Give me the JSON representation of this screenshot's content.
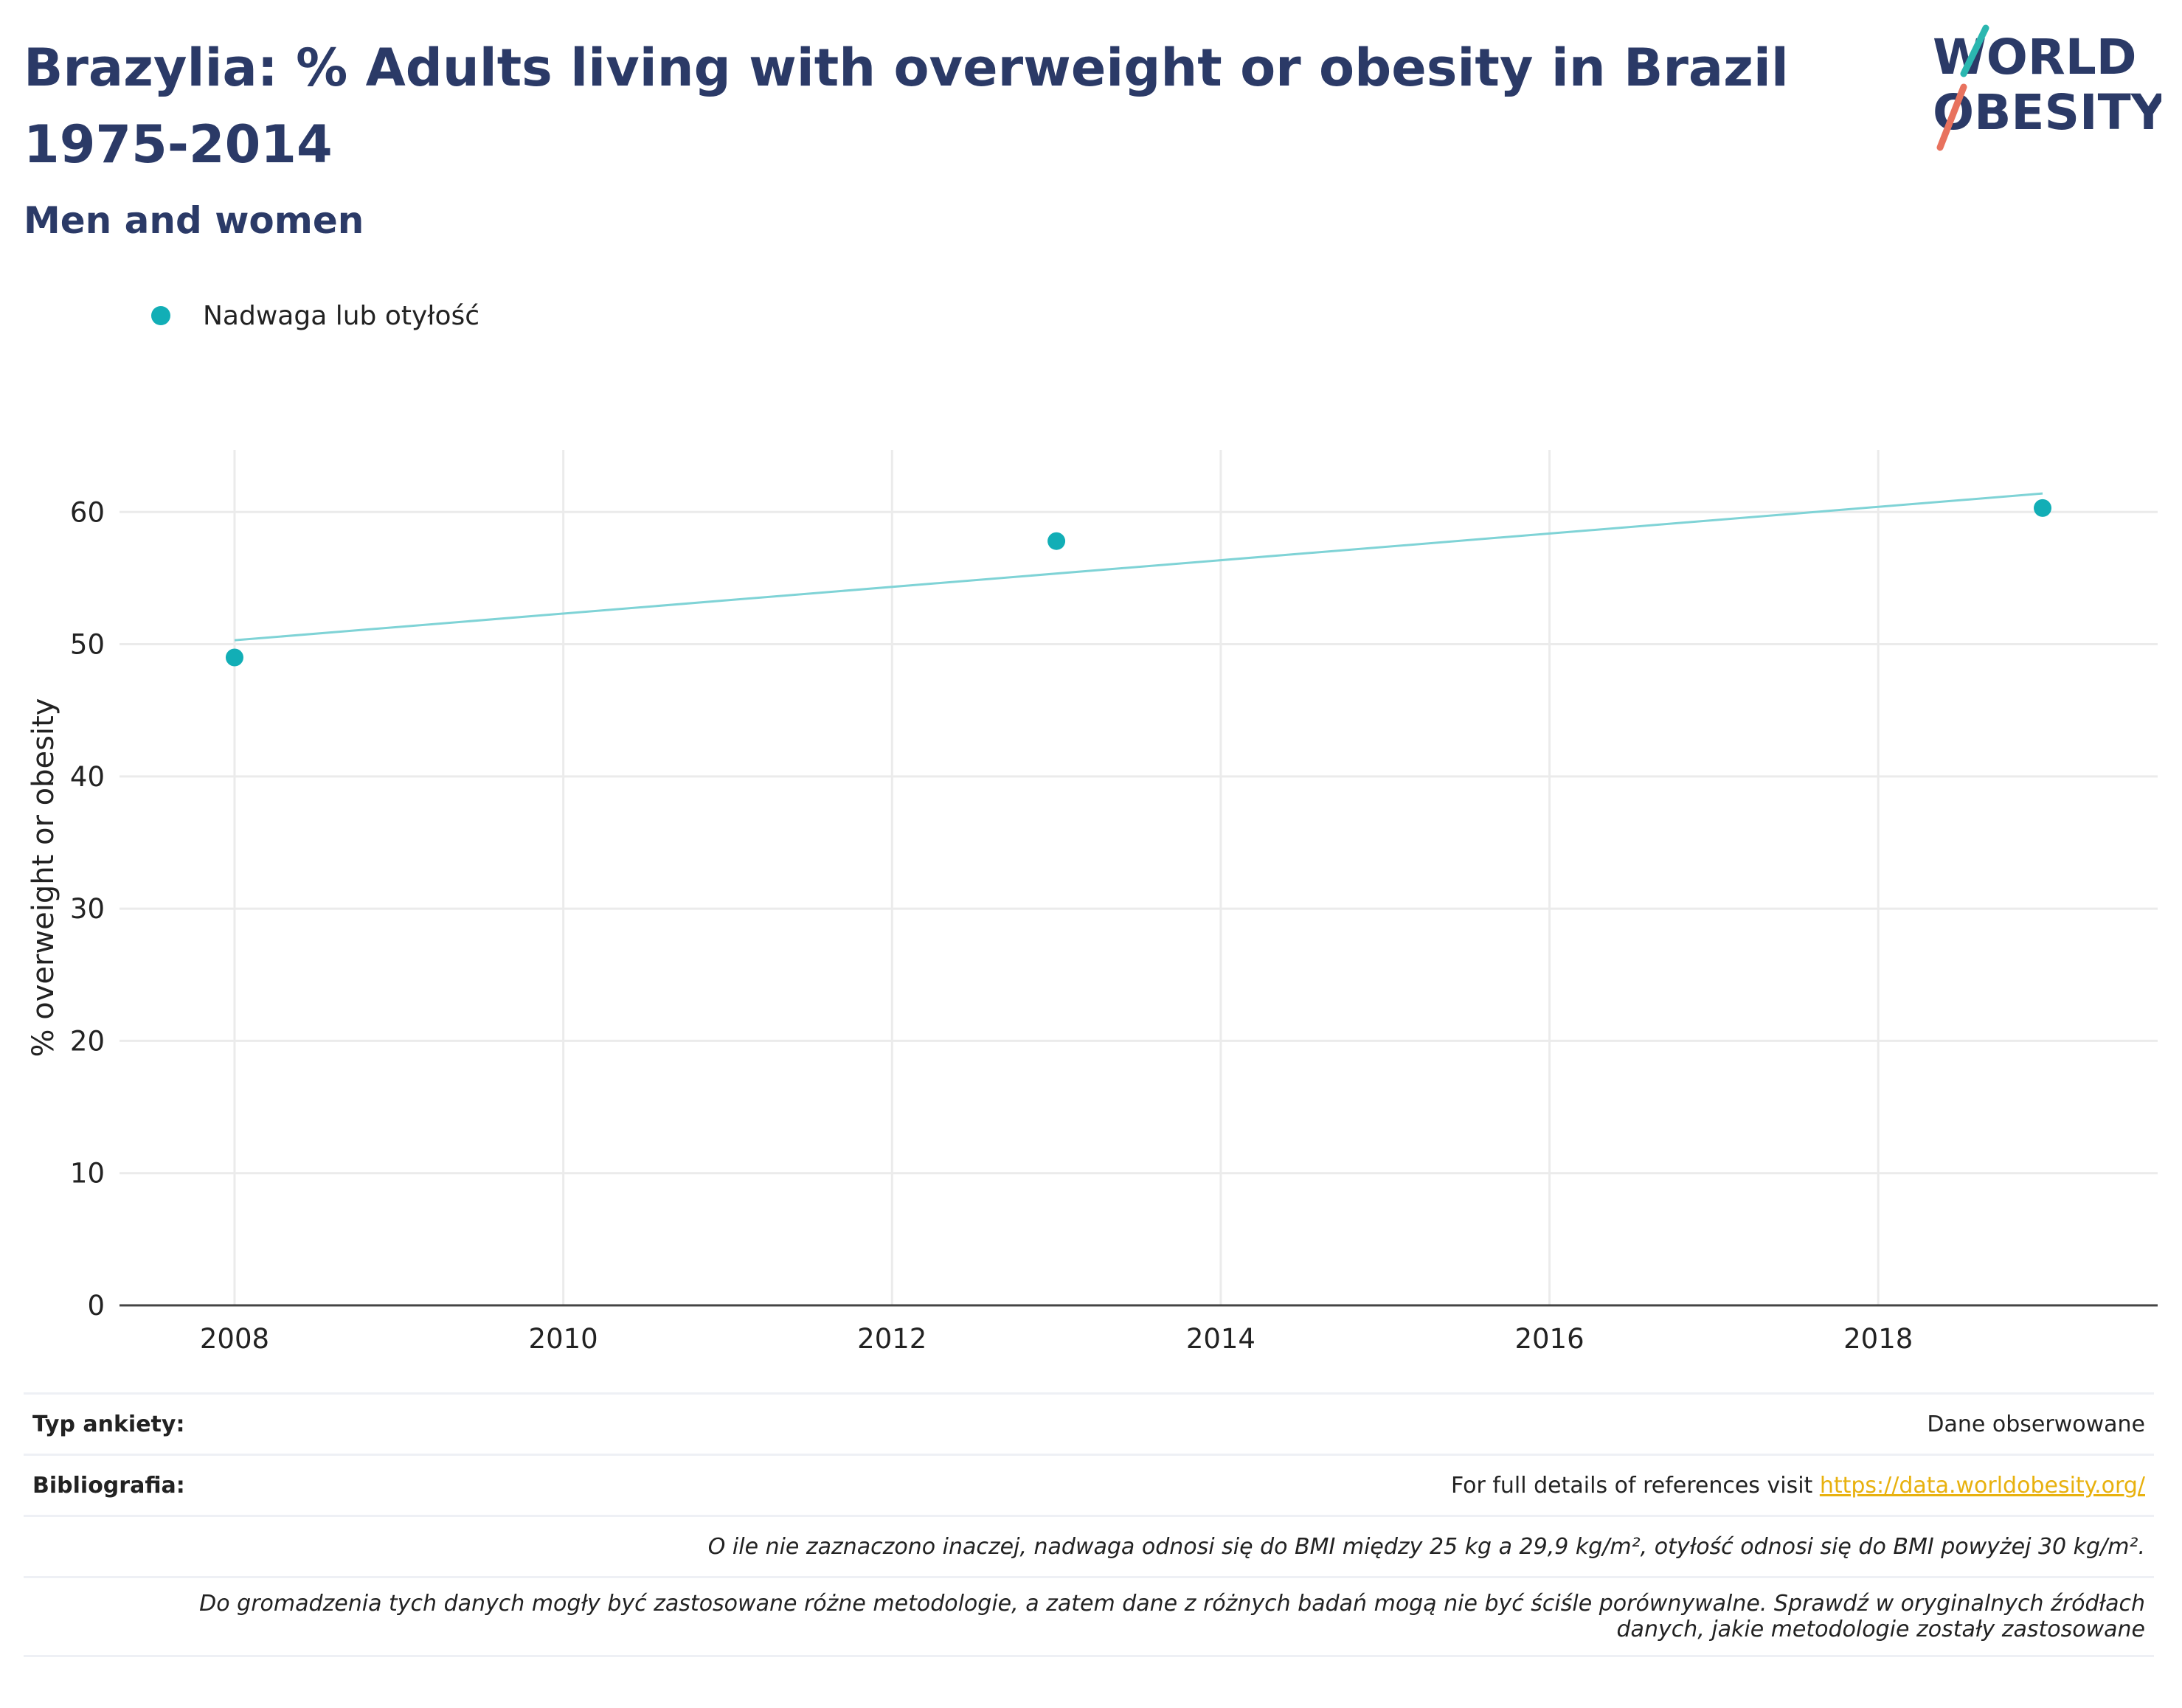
{
  "header": {
    "title": "Brazylia: % Adults living with overweight or obesity in Brazil 1975-2014",
    "subtitle": "Men and women"
  },
  "logo": {
    "line1": "WORLD",
    "line2": "OBESITY"
  },
  "colors": {
    "series": "#12aeb6",
    "trend": "#7fd3d6",
    "title": "#2b3a67",
    "link": "#e8b10e"
  },
  "chart_data": {
    "type": "scatter",
    "title": "",
    "xlabel": "",
    "ylabel": "% overweight or obesity",
    "xlim": [
      2007.3,
      2019.7
    ],
    "ylim": [
      0,
      64.7
    ],
    "x_ticks": [
      2008,
      2010,
      2012,
      2014,
      2016,
      2018
    ],
    "y_ticks": [
      0,
      10,
      20,
      30,
      40,
      50,
      60
    ],
    "grid": true,
    "legend_position": "top-left",
    "series": [
      {
        "name": "Nadwaga lub otyłość",
        "x": [
          2008,
          2013,
          2019
        ],
        "y": [
          49.0,
          57.8,
          60.3
        ],
        "trendline": {
          "x": [
            2008,
            2019
          ],
          "y": [
            50.3,
            61.4
          ]
        }
      }
    ]
  },
  "footer": {
    "survey_label": "Typ ankiety:",
    "survey_value": "Dane obserwowane",
    "bib_label": "Bibliografia:",
    "bib_text": "For full details of references visit ",
    "bib_link": "https://data.worldobesity.org/",
    "note1": "O ile nie zaznaczono inaczej, nadwaga odnosi się do BMI między 25 kg a 29,9 kg/m², otyłość odnosi się do BMI powyżej 30 kg/m².",
    "note2a": "Do gromadzenia tych danych mogły być zastosowane różne metodologie, a zatem dane z różnych badań mogą nie być ściśle porównywalne. Sprawdź w oryginalnych źródłach",
    "note2b": "danych, jakie metodologie zostały zastosowane"
  }
}
